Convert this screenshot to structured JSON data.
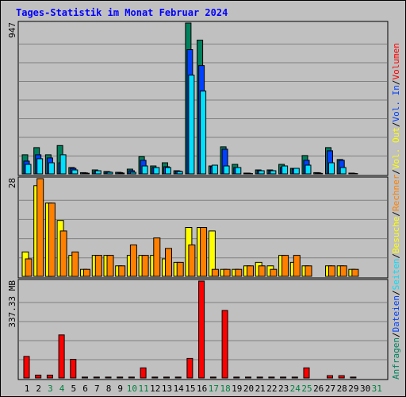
{
  "title": "Tages-Statistik im Monat Februar 2024",
  "panels": {
    "top": {
      "ymax_label": "947"
    },
    "middle": {
      "ymax_label": "28"
    },
    "bottom": {
      "ymax_label": "337.33 MB"
    }
  },
  "right_legend": [
    {
      "text": "Anfragen",
      "color": "#00805c"
    },
    {
      "sep": "/",
      "color": "#000000"
    },
    {
      "text": "Dateien",
      "color": "#0040ff"
    },
    {
      "sep": "/",
      "color": "#000000"
    },
    {
      "text": "Seiten",
      "color": "#00e0ff"
    },
    {
      "sep": "/",
      "color": "#000000"
    },
    {
      "text": "Besuche",
      "color": "#ffff00"
    },
    {
      "sep": "/",
      "color": "#000000"
    },
    {
      "text": "Rechner",
      "color": "#ff8000"
    },
    {
      "sep": "/",
      "color": "#000000"
    },
    {
      "text": "Vol. Out",
      "color": "#ffff00"
    },
    {
      "sep": "/",
      "color": "#000000"
    },
    {
      "text": "Vol. In",
      "color": "#0040ff"
    },
    {
      "sep": "/",
      "color": "#000000"
    },
    {
      "text": "Volumen",
      "color": "#ff0000"
    }
  ],
  "chart_data": {
    "type": "bar",
    "x_labels": [
      "1",
      "2",
      "3",
      "4",
      "5",
      "6",
      "7",
      "8",
      "9",
      "10",
      "11",
      "12",
      "13",
      "14",
      "15",
      "16",
      "17",
      "18",
      "19",
      "20",
      "21",
      "22",
      "23",
      "24",
      "25",
      "26",
      "27",
      "28",
      "29",
      "30",
      "31"
    ],
    "weekend_days": [
      3,
      4,
      10,
      11,
      17,
      18,
      24,
      25,
      31
    ],
    "colors": {
      "anfragen": "#00805c",
      "dateien": "#0040ff",
      "seiten": "#00e0ff",
      "besuche": "#ffff00",
      "rechner": "#ff8000",
      "volumen": "#ff0000",
      "weekday_label": "#000000",
      "weekend_label": "#008040",
      "title": "#0000ff"
    },
    "ylim_top": [
      0,
      947
    ],
    "ylim_middle": [
      0,
      28
    ],
    "ylim_bottom": [
      0,
      337.33
    ],
    "series": [
      {
        "name": "Anfragen",
        "values": [
          120,
          165,
          120,
          178,
          40,
          8,
          25,
          15,
          10,
          30,
          108,
          50,
          70,
          20,
          947,
          840,
          50,
          170,
          60,
          5,
          25,
          25,
          60,
          35,
          115,
          8,
          165,
          90,
          5,
          0,
          0
        ]
      },
      {
        "name": "Dateien",
        "values": [
          80,
          120,
          100,
          70,
          35,
          6,
          15,
          12,
          8,
          20,
          85,
          40,
          45,
          18,
          780,
          680,
          45,
          155,
          40,
          4,
          20,
          20,
          40,
          30,
          85,
          6,
          145,
          85,
          3,
          0,
          0
        ]
      },
      {
        "name": "Seiten",
        "values": [
          60,
          95,
          70,
          120,
          25,
          4,
          20,
          10,
          5,
          10,
          50,
          40,
          40,
          15,
          620,
          520,
          55,
          50,
          40,
          2,
          20,
          20,
          50,
          35,
          55,
          3,
          70,
          40,
          2,
          0,
          0
        ]
      },
      {
        "name": "Besuche",
        "values": [
          7,
          26,
          21,
          16,
          6,
          2,
          6,
          6,
          3,
          6,
          6,
          6,
          5,
          4,
          14,
          14,
          13,
          2,
          2,
          3,
          4,
          3,
          6,
          4,
          3,
          0,
          3,
          3,
          2,
          0,
          0
        ]
      },
      {
        "name": "Rechner",
        "values": [
          5,
          28,
          21,
          13,
          7,
          2,
          6,
          6,
          3,
          9,
          6,
          11,
          8,
          4,
          9,
          14,
          2,
          2,
          2,
          3,
          3,
          2,
          6,
          6,
          3,
          0,
          3,
          3,
          2,
          0,
          0
        ]
      },
      {
        "name": "Volumen",
        "values": [
          75,
          10,
          10,
          150,
          65,
          3,
          3,
          3,
          3,
          3,
          35,
          3,
          3,
          3,
          68,
          337.33,
          3,
          235,
          3,
          3,
          3,
          3,
          3,
          3,
          35,
          0,
          8,
          8,
          3,
          0,
          0
        ]
      }
    ]
  }
}
